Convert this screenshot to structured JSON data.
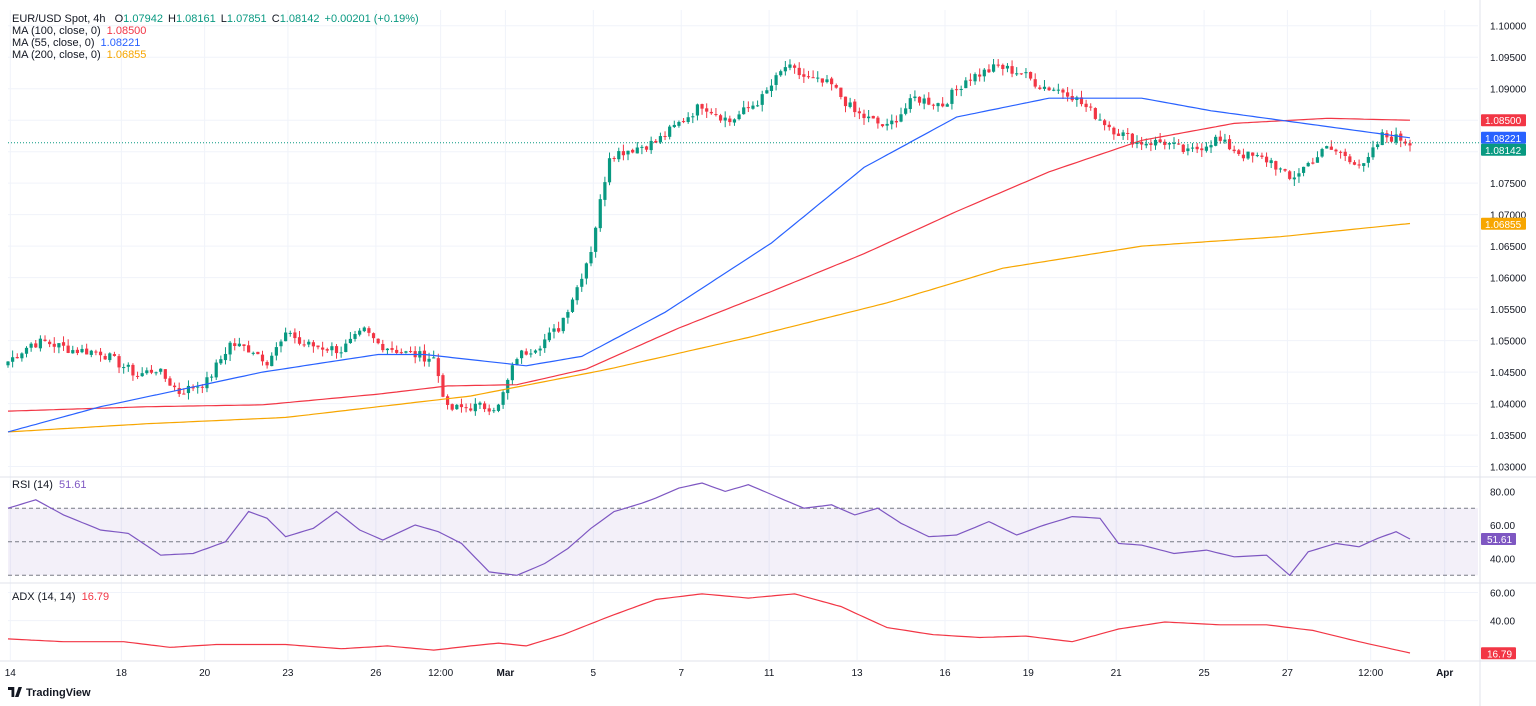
{
  "symbol": {
    "name": "EUR/USD Spot, 4h",
    "open_label": "O",
    "open": "1.07942",
    "high_label": "H",
    "high": "1.08161",
    "low_label": "L",
    "low": "1.07851",
    "close_label": "C",
    "close": "1.08142",
    "change": "+0.00201 (+0.19%)"
  },
  "indicators": {
    "ma100": {
      "label": "MA (100, close, 0)",
      "value": "1.08500",
      "color": "#f23645"
    },
    "ma55": {
      "label": "MA (55, close, 0)",
      "value": "1.08221",
      "color": "#2962ff"
    },
    "ma200": {
      "label": "MA (200, close, 0)",
      "value": "1.06855",
      "color": "#f7a600"
    },
    "rsi": {
      "label": "RSI (14)",
      "value": "51.61",
      "color": "#7e57c2"
    },
    "adx": {
      "label": "ADX (14, 14)",
      "value": "16.79",
      "color": "#f23645"
    }
  },
  "branding": {
    "name": "TradingView"
  },
  "colors": {
    "up": "#26a69a",
    "up_body": "#089981",
    "down": "#f23645",
    "grid": "#f0f3fa",
    "axis_text": "#131722"
  },
  "chart_data": [
    {
      "type": "candlestick",
      "title": "EUR/USD Spot, 4h",
      "ylim": [
        1.0285,
        1.1025
      ],
      "y_ticks": [
        1.03,
        1.035,
        1.04,
        1.045,
        1.05,
        1.055,
        1.06,
        1.065,
        1.07,
        1.075,
        1.08,
        1.085,
        1.09,
        1.095,
        1.1
      ],
      "y_tick_labels": [
        "1.03000",
        "1.03500",
        "1.04000",
        "1.04500",
        "1.05000",
        "1.05500",
        "1.06000",
        "1.06500",
        "1.07000",
        "1.07500",
        "1.08000",
        "1.08500",
        "1.09000",
        "1.09500",
        "1.10000"
      ],
      "x_labels": [
        "14",
        "18",
        "20",
        "23",
        "26",
        "12:00",
        "Mar",
        "5",
        "7",
        "11",
        "13",
        "16",
        "19",
        "21",
        "25",
        "27",
        "12:00",
        "Apr"
      ],
      "x_label_pos": [
        0.5,
        24.5,
        42.5,
        60.5,
        79.5,
        93.5,
        107.5,
        126.5,
        145.5,
        164.5,
        183.5,
        202.5,
        220.5,
        239.5,
        258.5,
        276.5,
        294.5,
        310.5
      ],
      "n_bars": 304,
      "close_keypoints": [
        [
          0,
          1.0467
        ],
        [
          5,
          1.0495
        ],
        [
          8,
          1.0498
        ],
        [
          14,
          1.0485
        ],
        [
          20,
          1.0482
        ],
        [
          28,
          1.0445
        ],
        [
          32,
          1.0455
        ],
        [
          37,
          1.0418
        ],
        [
          43,
          1.0435
        ],
        [
          48,
          1.0495
        ],
        [
          53,
          1.0485
        ],
        [
          56,
          1.0468
        ],
        [
          61,
          1.0515
        ],
        [
          63,
          1.0495
        ],
        [
          72,
          1.0485
        ],
        [
          77,
          1.0515
        ],
        [
          80,
          1.0495
        ],
        [
          86,
          1.048
        ],
        [
          92,
          1.0472
        ],
        [
          95,
          1.039
        ],
        [
          100,
          1.0395
        ],
        [
          106,
          1.0395
        ],
        [
          110,
          1.0475
        ],
        [
          115,
          1.0495
        ],
        [
          119,
          1.052
        ],
        [
          123,
          1.0585
        ],
        [
          126,
          1.0645
        ],
        [
          130,
          1.0795
        ],
        [
          135,
          1.0805
        ],
        [
          140,
          1.0815
        ],
        [
          145,
          1.0845
        ],
        [
          150,
          1.0875
        ],
        [
          156,
          1.0848
        ],
        [
          163,
          1.0885
        ],
        [
          168,
          1.0935
        ],
        [
          173,
          1.0915
        ],
        [
          178,
          1.0905
        ],
        [
          183,
          1.0862
        ],
        [
          190,
          1.0838
        ],
        [
          196,
          1.0885
        ],
        [
          202,
          1.0875
        ],
        [
          207,
          1.0915
        ],
        [
          214,
          1.0935
        ],
        [
          219,
          1.0925
        ],
        [
          223,
          1.0905
        ],
        [
          229,
          1.0895
        ],
        [
          233,
          1.087
        ],
        [
          239,
          1.0835
        ],
        [
          244,
          1.0815
        ],
        [
          250,
          1.0815
        ],
        [
          255,
          1.0798
        ],
        [
          261,
          1.082
        ],
        [
          267,
          1.0795
        ],
        [
          273,
          1.0785
        ],
        [
          277,
          1.0755
        ],
        [
          280,
          1.0775
        ],
        [
          285,
          1.0805
        ],
        [
          289,
          1.0795
        ],
        [
          293,
          1.0775
        ],
        [
          297,
          1.0825
        ],
        [
          301,
          1.082
        ],
        [
          303,
          1.0814
        ]
      ],
      "volatility_pct": 0.15,
      "ma_keypoints": {
        "ma55": [
          [
            0,
            1.0355
          ],
          [
            20,
            1.0395
          ],
          [
            55,
            1.045
          ],
          [
            80,
            1.0478
          ],
          [
            90,
            1.0478
          ],
          [
            112,
            1.046
          ],
          [
            124,
            1.0475
          ],
          [
            142,
            1.0545
          ],
          [
            165,
            1.0655
          ],
          [
            185,
            1.0775
          ],
          [
            205,
            1.0855
          ],
          [
            225,
            1.0885
          ],
          [
            245,
            1.0885
          ],
          [
            260,
            1.0865
          ],
          [
            280,
            1.0845
          ],
          [
            303,
            1.0822
          ]
        ],
        "ma100": [
          [
            0,
            1.0388
          ],
          [
            30,
            1.0395
          ],
          [
            55,
            1.0398
          ],
          [
            80,
            1.0415
          ],
          [
            95,
            1.0428
          ],
          [
            110,
            1.043
          ],
          [
            125,
            1.0455
          ],
          [
            145,
            1.052
          ],
          [
            165,
            1.0578
          ],
          [
            185,
            1.0638
          ],
          [
            205,
            1.0705
          ],
          [
            225,
            1.0768
          ],
          [
            245,
            1.0818
          ],
          [
            265,
            1.0845
          ],
          [
            285,
            1.0853
          ],
          [
            303,
            1.085
          ]
        ],
        "ma200": [
          [
            0,
            1.0355
          ],
          [
            30,
            1.0368
          ],
          [
            60,
            1.0378
          ],
          [
            100,
            1.0412
          ],
          [
            130,
            1.0455
          ],
          [
            160,
            1.0505
          ],
          [
            190,
            1.056
          ],
          [
            215,
            1.0615
          ],
          [
            245,
            1.065
          ],
          [
            275,
            1.0665
          ],
          [
            303,
            1.0686
          ]
        ]
      },
      "price_tags": [
        {
          "value": 1.085,
          "label": "1.08500",
          "color": "#f23645"
        },
        {
          "value": 1.08221,
          "label": "1.08221",
          "color": "#2962ff"
        },
        {
          "value": 1.08142,
          "label": "1.08142",
          "color": "#089981"
        },
        {
          "value": 1.06855,
          "label": "1.06855",
          "color": "#f7a600"
        }
      ]
    },
    {
      "type": "line",
      "title": "RSI (14)",
      "ylim": [
        26,
        88
      ],
      "y_ticks": [
        40,
        60,
        80
      ],
      "y_tick_labels": [
        "40.00",
        "60.00",
        "80.00"
      ],
      "band": [
        30,
        70
      ],
      "midline": 50,
      "last": 51.61,
      "keypoints": [
        [
          0,
          70
        ],
        [
          6,
          75
        ],
        [
          12,
          66
        ],
        [
          20,
          57
        ],
        [
          26,
          55
        ],
        [
          33,
          42
        ],
        [
          40,
          43
        ],
        [
          47,
          50
        ],
        [
          52,
          68
        ],
        [
          56,
          64
        ],
        [
          60,
          53
        ],
        [
          66,
          58
        ],
        [
          71,
          68
        ],
        [
          76,
          57
        ],
        [
          81,
          51
        ],
        [
          88,
          60
        ],
        [
          93,
          56
        ],
        [
          98,
          49
        ],
        [
          104,
          32
        ],
        [
          110,
          30
        ],
        [
          116,
          37
        ],
        [
          121,
          46
        ],
        [
          126,
          58
        ],
        [
          131,
          68
        ],
        [
          137,
          73
        ],
        [
          140,
          76
        ],
        [
          145,
          82
        ],
        [
          150,
          85
        ],
        [
          155,
          80
        ],
        [
          160,
          84
        ],
        [
          166,
          77
        ],
        [
          172,
          70
        ],
        [
          178,
          72
        ],
        [
          183,
          66
        ],
        [
          188,
          70
        ],
        [
          193,
          61
        ],
        [
          199,
          53
        ],
        [
          205,
          54
        ],
        [
          212,
          62
        ],
        [
          218,
          54
        ],
        [
          224,
          60
        ],
        [
          230,
          65
        ],
        [
          236,
          64
        ],
        [
          240,
          49
        ],
        [
          245,
          48
        ],
        [
          252,
          43
        ],
        [
          259,
          45
        ],
        [
          265,
          41
        ],
        [
          272,
          42
        ],
        [
          277,
          30
        ],
        [
          281,
          44
        ],
        [
          287,
          49
        ],
        [
          292,
          47
        ],
        [
          296,
          52
        ],
        [
          300,
          56
        ],
        [
          303,
          51.61
        ]
      ]
    },
    {
      "type": "line",
      "title": "ADX (14, 14)",
      "ylim": [
        12,
        66
      ],
      "y_ticks": [
        40,
        60
      ],
      "y_tick_labels": [
        "40.00",
        "60.00"
      ],
      "last": 16.79,
      "keypoints": [
        [
          0,
          27
        ],
        [
          12,
          25
        ],
        [
          25,
          25
        ],
        [
          35,
          21
        ],
        [
          45,
          23
        ],
        [
          60,
          23
        ],
        [
          72,
          20
        ],
        [
          82,
          22
        ],
        [
          92,
          19
        ],
        [
          100,
          22
        ],
        [
          106,
          24
        ],
        [
          112,
          22
        ],
        [
          120,
          30
        ],
        [
          130,
          43
        ],
        [
          140,
          55
        ],
        [
          150,
          59
        ],
        [
          160,
          56
        ],
        [
          170,
          59
        ],
        [
          180,
          50
        ],
        [
          190,
          35
        ],
        [
          200,
          30
        ],
        [
          210,
          28
        ],
        [
          220,
          29
        ],
        [
          230,
          25
        ],
        [
          240,
          34
        ],
        [
          250,
          39
        ],
        [
          262,
          37
        ],
        [
          272,
          37
        ],
        [
          282,
          33
        ],
        [
          292,
          25
        ],
        [
          303,
          17
        ]
      ]
    }
  ]
}
